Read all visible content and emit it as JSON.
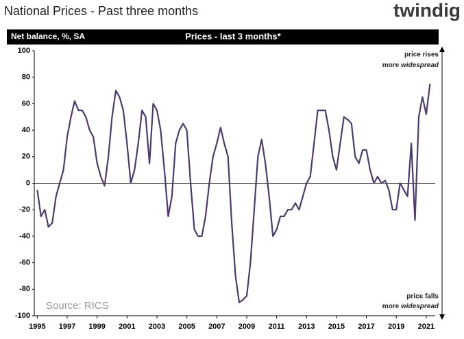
{
  "chart_data": {
    "type": "line",
    "title": "National Prices - Past three months",
    "brand": "twindig",
    "y_axis_label": "Net balance, %, SA",
    "subtitle": "Prices - last 3 months*",
    "annotations": [
      {
        "text": "price rises",
        "line2": "more ",
        "emphasis": "widespread"
      },
      {
        "text": "price falls",
        "line2": "more ",
        "emphasis": "widespread"
      }
    ],
    "source": "Source: RICS",
    "xlim": [
      1994.8,
      2021.6
    ],
    "ylim": [
      -100,
      100
    ],
    "xticks": [
      1995,
      1997,
      1999,
      2001,
      2003,
      2005,
      2007,
      2009,
      2011,
      2013,
      2015,
      2017,
      2019,
      2021
    ],
    "yticks": [
      -100,
      -80,
      -60,
      -40,
      -20,
      0,
      20,
      40,
      60,
      80,
      100
    ],
    "series": [
      {
        "name": "Prices - last 3 months",
        "color": "#4b3a6e",
        "x": [
          1995.0,
          1995.25,
          1995.5,
          1995.75,
          1996.0,
          1996.25,
          1996.5,
          1996.75,
          1997.0,
          1997.25,
          1997.5,
          1997.75,
          1998.0,
          1998.25,
          1998.5,
          1998.75,
          1999.0,
          1999.25,
          1999.5,
          1999.75,
          2000.0,
          2000.25,
          2000.5,
          2000.75,
          2001.0,
          2001.25,
          2001.5,
          2001.75,
          2002.0,
          2002.25,
          2002.5,
          2002.75,
          2003.0,
          2003.25,
          2003.5,
          2003.75,
          2004.0,
          2004.25,
          2004.5,
          2004.75,
          2005.0,
          2005.25,
          2005.5,
          2005.75,
          2006.0,
          2006.25,
          2006.5,
          2006.75,
          2007.0,
          2007.25,
          2007.5,
          2007.75,
          2008.0,
          2008.25,
          2008.5,
          2008.75,
          2009.0,
          2009.25,
          2009.5,
          2009.75,
          2010.0,
          2010.25,
          2010.5,
          2010.75,
          2011.0,
          2011.25,
          2011.5,
          2011.75,
          2012.0,
          2012.25,
          2012.5,
          2012.75,
          2013.0,
          2013.25,
          2013.5,
          2013.75,
          2014.0,
          2014.25,
          2014.5,
          2014.75,
          2015.0,
          2015.25,
          2015.5,
          2015.75,
          2016.0,
          2016.25,
          2016.5,
          2016.75,
          2017.0,
          2017.25,
          2017.5,
          2017.75,
          2018.0,
          2018.25,
          2018.5,
          2018.75,
          2019.0,
          2019.25,
          2019.5,
          2019.75,
          2020.0,
          2020.25,
          2020.5,
          2020.75,
          2021.0,
          2021.25
        ],
        "values": [
          -5,
          -25,
          -20,
          -33,
          -30,
          -10,
          0,
          10,
          35,
          50,
          62,
          55,
          55,
          50,
          40,
          35,
          15,
          5,
          -2,
          20,
          50,
          70,
          65,
          55,
          30,
          0,
          10,
          30,
          55,
          50,
          15,
          60,
          55,
          40,
          10,
          -25,
          -10,
          30,
          40,
          45,
          40,
          0,
          -35,
          -40,
          -40,
          -25,
          0,
          20,
          30,
          42,
          30,
          20,
          -30,
          -70,
          -90,
          -88,
          -85,
          -60,
          -20,
          20,
          33,
          15,
          -10,
          -40,
          -35,
          -25,
          -25,
          -20,
          -20,
          -15,
          -20,
          -10,
          0,
          5,
          30,
          55,
          55,
          55,
          40,
          20,
          10,
          30,
          50,
          48,
          45,
          20,
          15,
          25,
          25,
          10,
          0,
          5,
          0,
          2,
          -5,
          -20,
          -20,
          0,
          -5,
          -10,
          30,
          -28,
          50,
          65,
          52,
          75
        ]
      }
    ]
  }
}
